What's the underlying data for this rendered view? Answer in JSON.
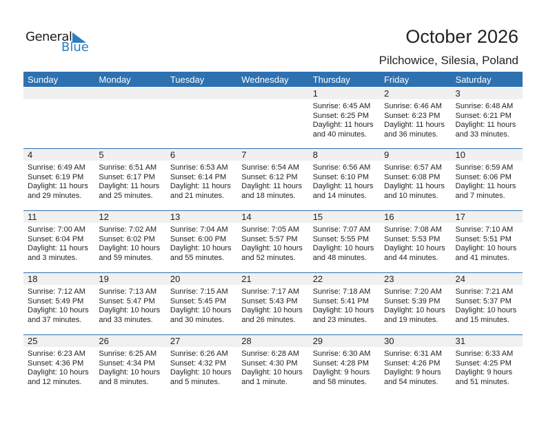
{
  "logo": {
    "line1": "General",
    "line2": "Blue"
  },
  "title": "October 2026",
  "location": "Pilchowice, Silesia, Poland",
  "colors": {
    "header": "#2e71b1",
    "date_strip": "#f0f0f0",
    "logo_blue": "#2a7fc1"
  },
  "weekdays": [
    "Sunday",
    "Monday",
    "Tuesday",
    "Wednesday",
    "Thursday",
    "Friday",
    "Saturday"
  ],
  "weeks": [
    [
      null,
      null,
      null,
      null,
      {
        "day": "1",
        "sunrise": "Sunrise: 6:45 AM",
        "sunset": "Sunset: 6:25 PM",
        "daylight1": "Daylight: 11 hours",
        "daylight2": "and 40 minutes."
      },
      {
        "day": "2",
        "sunrise": "Sunrise: 6:46 AM",
        "sunset": "Sunset: 6:23 PM",
        "daylight1": "Daylight: 11 hours",
        "daylight2": "and 36 minutes."
      },
      {
        "day": "3",
        "sunrise": "Sunrise: 6:48 AM",
        "sunset": "Sunset: 6:21 PM",
        "daylight1": "Daylight: 11 hours",
        "daylight2": "and 33 minutes."
      }
    ],
    [
      {
        "day": "4",
        "sunrise": "Sunrise: 6:49 AM",
        "sunset": "Sunset: 6:19 PM",
        "daylight1": "Daylight: 11 hours",
        "daylight2": "and 29 minutes."
      },
      {
        "day": "5",
        "sunrise": "Sunrise: 6:51 AM",
        "sunset": "Sunset: 6:17 PM",
        "daylight1": "Daylight: 11 hours",
        "daylight2": "and 25 minutes."
      },
      {
        "day": "6",
        "sunrise": "Sunrise: 6:53 AM",
        "sunset": "Sunset: 6:14 PM",
        "daylight1": "Daylight: 11 hours",
        "daylight2": "and 21 minutes."
      },
      {
        "day": "7",
        "sunrise": "Sunrise: 6:54 AM",
        "sunset": "Sunset: 6:12 PM",
        "daylight1": "Daylight: 11 hours",
        "daylight2": "and 18 minutes."
      },
      {
        "day": "8",
        "sunrise": "Sunrise: 6:56 AM",
        "sunset": "Sunset: 6:10 PM",
        "daylight1": "Daylight: 11 hours",
        "daylight2": "and 14 minutes."
      },
      {
        "day": "9",
        "sunrise": "Sunrise: 6:57 AM",
        "sunset": "Sunset: 6:08 PM",
        "daylight1": "Daylight: 11 hours",
        "daylight2": "and 10 minutes."
      },
      {
        "day": "10",
        "sunrise": "Sunrise: 6:59 AM",
        "sunset": "Sunset: 6:06 PM",
        "daylight1": "Daylight: 11 hours",
        "daylight2": "and 7 minutes."
      }
    ],
    [
      {
        "day": "11",
        "sunrise": "Sunrise: 7:00 AM",
        "sunset": "Sunset: 6:04 PM",
        "daylight1": "Daylight: 11 hours",
        "daylight2": "and 3 minutes."
      },
      {
        "day": "12",
        "sunrise": "Sunrise: 7:02 AM",
        "sunset": "Sunset: 6:02 PM",
        "daylight1": "Daylight: 10 hours",
        "daylight2": "and 59 minutes."
      },
      {
        "day": "13",
        "sunrise": "Sunrise: 7:04 AM",
        "sunset": "Sunset: 6:00 PM",
        "daylight1": "Daylight: 10 hours",
        "daylight2": "and 55 minutes."
      },
      {
        "day": "14",
        "sunrise": "Sunrise: 7:05 AM",
        "sunset": "Sunset: 5:57 PM",
        "daylight1": "Daylight: 10 hours",
        "daylight2": "and 52 minutes."
      },
      {
        "day": "15",
        "sunrise": "Sunrise: 7:07 AM",
        "sunset": "Sunset: 5:55 PM",
        "daylight1": "Daylight: 10 hours",
        "daylight2": "and 48 minutes."
      },
      {
        "day": "16",
        "sunrise": "Sunrise: 7:08 AM",
        "sunset": "Sunset: 5:53 PM",
        "daylight1": "Daylight: 10 hours",
        "daylight2": "and 44 minutes."
      },
      {
        "day": "17",
        "sunrise": "Sunrise: 7:10 AM",
        "sunset": "Sunset: 5:51 PM",
        "daylight1": "Daylight: 10 hours",
        "daylight2": "and 41 minutes."
      }
    ],
    [
      {
        "day": "18",
        "sunrise": "Sunrise: 7:12 AM",
        "sunset": "Sunset: 5:49 PM",
        "daylight1": "Daylight: 10 hours",
        "daylight2": "and 37 minutes."
      },
      {
        "day": "19",
        "sunrise": "Sunrise: 7:13 AM",
        "sunset": "Sunset: 5:47 PM",
        "daylight1": "Daylight: 10 hours",
        "daylight2": "and 33 minutes."
      },
      {
        "day": "20",
        "sunrise": "Sunrise: 7:15 AM",
        "sunset": "Sunset: 5:45 PM",
        "daylight1": "Daylight: 10 hours",
        "daylight2": "and 30 minutes."
      },
      {
        "day": "21",
        "sunrise": "Sunrise: 7:17 AM",
        "sunset": "Sunset: 5:43 PM",
        "daylight1": "Daylight: 10 hours",
        "daylight2": "and 26 minutes."
      },
      {
        "day": "22",
        "sunrise": "Sunrise: 7:18 AM",
        "sunset": "Sunset: 5:41 PM",
        "daylight1": "Daylight: 10 hours",
        "daylight2": "and 23 minutes."
      },
      {
        "day": "23",
        "sunrise": "Sunrise: 7:20 AM",
        "sunset": "Sunset: 5:39 PM",
        "daylight1": "Daylight: 10 hours",
        "daylight2": "and 19 minutes."
      },
      {
        "day": "24",
        "sunrise": "Sunrise: 7:21 AM",
        "sunset": "Sunset: 5:37 PM",
        "daylight1": "Daylight: 10 hours",
        "daylight2": "and 15 minutes."
      }
    ],
    [
      {
        "day": "25",
        "sunrise": "Sunrise: 6:23 AM",
        "sunset": "Sunset: 4:36 PM",
        "daylight1": "Daylight: 10 hours",
        "daylight2": "and 12 minutes."
      },
      {
        "day": "26",
        "sunrise": "Sunrise: 6:25 AM",
        "sunset": "Sunset: 4:34 PM",
        "daylight1": "Daylight: 10 hours",
        "daylight2": "and 8 minutes."
      },
      {
        "day": "27",
        "sunrise": "Sunrise: 6:26 AM",
        "sunset": "Sunset: 4:32 PM",
        "daylight1": "Daylight: 10 hours",
        "daylight2": "and 5 minutes."
      },
      {
        "day": "28",
        "sunrise": "Sunrise: 6:28 AM",
        "sunset": "Sunset: 4:30 PM",
        "daylight1": "Daylight: 10 hours",
        "daylight2": "and 1 minute."
      },
      {
        "day": "29",
        "sunrise": "Sunrise: 6:30 AM",
        "sunset": "Sunset: 4:28 PM",
        "daylight1": "Daylight: 9 hours",
        "daylight2": "and 58 minutes."
      },
      {
        "day": "30",
        "sunrise": "Sunrise: 6:31 AM",
        "sunset": "Sunset: 4:26 PM",
        "daylight1": "Daylight: 9 hours",
        "daylight2": "and 54 minutes."
      },
      {
        "day": "31",
        "sunrise": "Sunrise: 6:33 AM",
        "sunset": "Sunset: 4:25 PM",
        "daylight1": "Daylight: 9 hours",
        "daylight2": "and 51 minutes."
      }
    ]
  ]
}
